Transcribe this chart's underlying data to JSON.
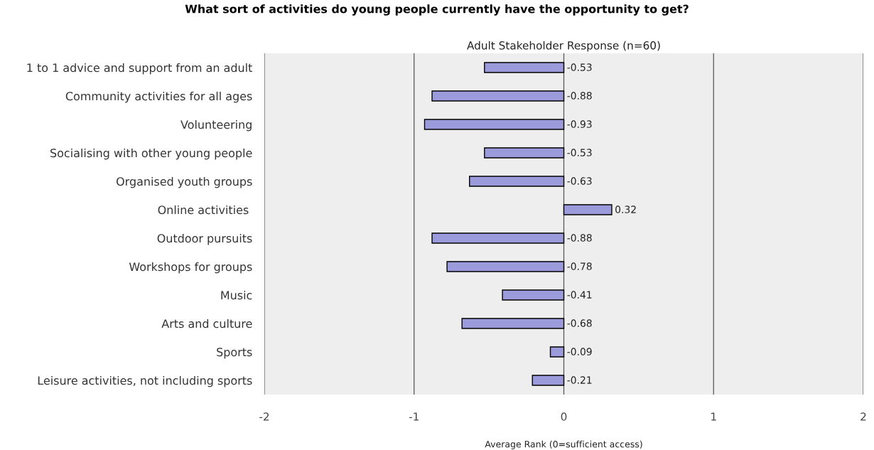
{
  "chart_data": {
    "type": "bar",
    "orientation": "horizontal",
    "title": "What sort of activities do young people currently have the opportunity to get?",
    "subtitle": "Adult Stakeholder Response (n=60)",
    "xlabel": "Average Rank (0=sufficient access)",
    "categories": [
      "1 to 1 advice and support from an adult",
      "Community activities for all ages",
      "Volunteering",
      "Socialising with other young people",
      "Organised youth groups",
      "Online activities ",
      "Outdoor pursuits",
      "Workshops for groups",
      "Music",
      "Arts and culture",
      "Sports",
      "Leisure activities, not including sports"
    ],
    "values": [
      -0.53,
      -0.88,
      -0.93,
      -0.53,
      -0.63,
      0.32,
      -0.88,
      -0.78,
      -0.41,
      -0.68,
      -0.09,
      -0.21
    ],
    "color": "#9b9bdb",
    "xlim": [
      -2,
      2
    ],
    "xticks": [
      -2,
      -1,
      0,
      1,
      2
    ],
    "grid": "x",
    "data_labels": true
  }
}
